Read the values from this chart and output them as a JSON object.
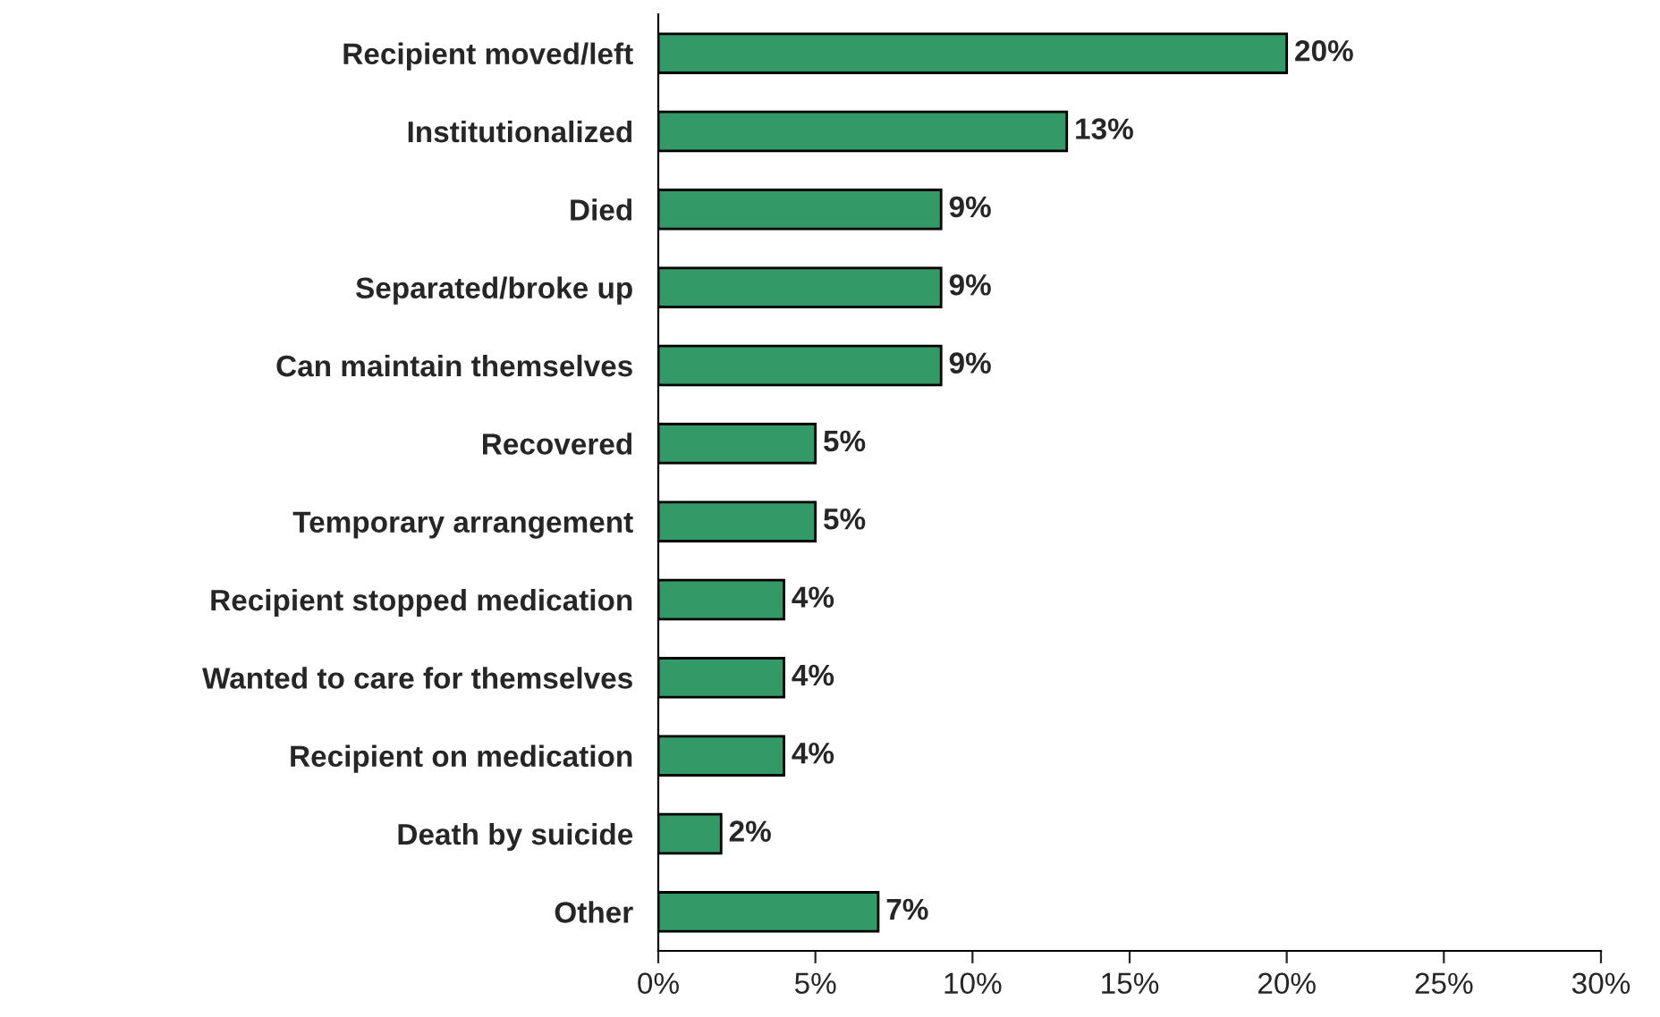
{
  "chart_data": {
    "type": "bar",
    "orientation": "horizontal",
    "categories": [
      "Recipient moved/left",
      "Institutionalized",
      "Died",
      "Separated/broke up",
      "Can maintain themselves",
      "Recovered",
      "Temporary arrangement",
      "Recipient stopped medication",
      "Wanted to care for themselves",
      "Recipient on medication",
      "Death by suicide",
      "Other"
    ],
    "values": [
      20,
      13,
      9,
      9,
      9,
      5,
      5,
      4,
      4,
      4,
      2,
      7
    ],
    "value_labels": [
      "20%",
      "13%",
      "9%",
      "9%",
      "9%",
      "5%",
      "5%",
      "4%",
      "4%",
      "4%",
      "2%",
      "7%"
    ],
    "color": "#339966",
    "xlim": [
      0,
      30
    ],
    "xticks": [
      {
        "value": 0,
        "label": "0%"
      },
      {
        "value": 5,
        "label": "5%"
      },
      {
        "value": 10,
        "label": "10%"
      },
      {
        "value": 15,
        "label": "15%"
      },
      {
        "value": 20,
        "label": "20%"
      },
      {
        "value": 25,
        "label": "25%"
      },
      {
        "value": 30,
        "label": "30%"
      }
    ],
    "grid": false,
    "legend": false
  }
}
